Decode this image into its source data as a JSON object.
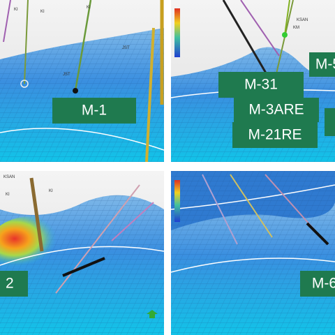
{
  "panels": [
    {
      "labels": [
        "M-1"
      ],
      "annotations": [
        "KI",
        "KI",
        "KI",
        "JST",
        "JST"
      ]
    },
    {
      "labels": [
        "M-5",
        "M-31",
        "M-3ARE",
        "M-21RE"
      ],
      "annotations": [
        "KSAN",
        "KM"
      ]
    },
    {
      "labels": [
        "2"
      ],
      "annotations": [
        "KSAN",
        "KI",
        "KI"
      ]
    },
    {
      "labels": [
        "M-6"
      ],
      "annotations": []
    }
  ]
}
